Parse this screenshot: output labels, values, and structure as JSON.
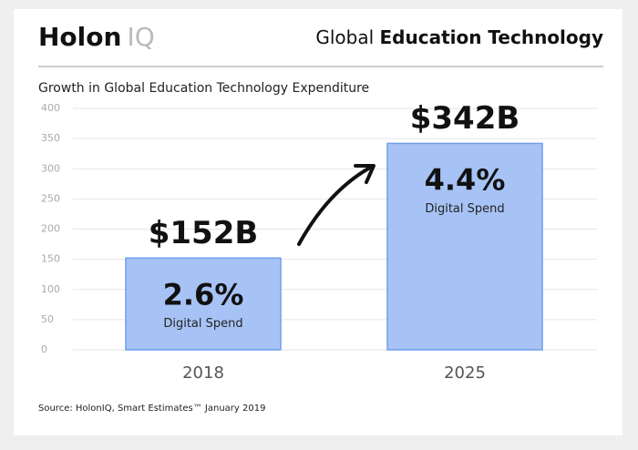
{
  "header": {
    "logo_bold": "Holon",
    "logo_light": "IQ",
    "title_regular": "Global",
    "title_bold": "Education Technology"
  },
  "chart_data": {
    "type": "bar",
    "title": "Growth in Global Education Technology Expenditure",
    "categories": [
      "2018",
      "2025"
    ],
    "values": [
      152,
      342
    ],
    "value_labels": [
      "$152B",
      "$342B"
    ],
    "shares": [
      "2.6%",
      "4.4%"
    ],
    "share_label": "Digital Spend",
    "color": "#a7c3f5",
    "edge_color": "#6f9ded",
    "ylim": [
      0,
      400
    ],
    "yticks": [
      0,
      50,
      100,
      150,
      200,
      250,
      300,
      350,
      400
    ],
    "grid": true,
    "source": "Source: HolonIQ, Smart Estimates™ January 2019"
  }
}
